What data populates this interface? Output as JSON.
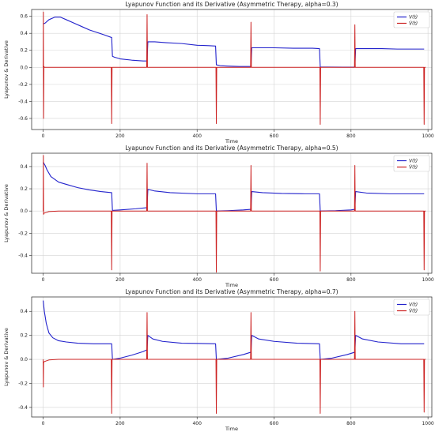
{
  "chart_data": [
    {
      "type": "line",
      "title": "Lyapunov Function and its Derivative (Asymmetric Therapy, alpha=0.3)",
      "xlabel": "Time",
      "ylabel": "Lyapunov & Derivative",
      "xlim": [
        -30,
        1010
      ],
      "ylim": [
        -0.73,
        0.68
      ],
      "xticks": [
        "0",
        "200",
        "400",
        "600",
        "800",
        "1000"
      ],
      "yticks": [
        "-0.6",
        "-0.4",
        "-0.2",
        "0.0",
        "0.2",
        "0.4",
        "0.6"
      ],
      "grid": true,
      "legend_position": "top-right",
      "series": [
        {
          "name": "V(t)",
          "color": "#2222cc",
          "x": [
            0,
            5,
            15,
            30,
            45,
            60,
            80,
            100,
            120,
            140,
            160,
            178,
            180,
            185,
            200,
            230,
            260,
            270,
            272,
            290,
            320,
            360,
            400,
            430,
            448,
            450,
            460,
            480,
            510,
            540,
            542,
            560,
            600,
            650,
            700,
            718,
            720,
            740,
            780,
            810,
            812,
            840,
            880,
            920,
            960,
            990
          ],
          "values": [
            0.51,
            0.52,
            0.56,
            0.59,
            0.59,
            0.56,
            0.52,
            0.48,
            0.44,
            0.41,
            0.38,
            0.35,
            0.13,
            0.12,
            0.1,
            0.085,
            0.075,
            0.075,
            0.3,
            0.3,
            0.29,
            0.28,
            0.26,
            0.255,
            0.25,
            0.03,
            0.02,
            0.015,
            0.01,
            0.01,
            0.23,
            0.23,
            0.23,
            0.225,
            0.225,
            0.22,
            0.005,
            0.003,
            0.002,
            0.002,
            0.22,
            0.22,
            0.22,
            0.215,
            0.215,
            0.215
          ]
        },
        {
          "name": "V̇(t)",
          "color": "#cc2222",
          "x": [
            0,
            0.5,
            1,
            2,
            3,
            60,
            177,
            178,
            179,
            180,
            182,
            200,
            269,
            270,
            271,
            272,
            274,
            300,
            449,
            450,
            451,
            452,
            454,
            500,
            539,
            540,
            541,
            542,
            544,
            600,
            719,
            720,
            721,
            722,
            724,
            800,
            809,
            810,
            811,
            812,
            814,
            900,
            989,
            990,
            991,
            992,
            994
          ],
          "values": [
            0.0,
            0.65,
            -0.6,
            0.01,
            0.0,
            0.0,
            0.0,
            -0.66,
            0.0,
            0.0,
            0.0,
            0.0,
            0.0,
            0.62,
            0.0,
            0.0,
            0.0,
            0.0,
            0.0,
            -0.66,
            0.0,
            0.0,
            0.0,
            0.0,
            0.0,
            0.53,
            0.0,
            0.0,
            0.0,
            0.0,
            0.0,
            -0.67,
            0.0,
            0.0,
            0.0,
            0.0,
            0.0,
            0.5,
            0.0,
            0.0,
            0.0,
            0.0,
            0.0,
            -0.67,
            0.0,
            0.0,
            0.0
          ]
        }
      ]
    },
    {
      "type": "line",
      "title": "Lyapunov Function and its Derivative (Asymmetric Therapy, alpha=0.5)",
      "xlabel": "Time",
      "ylabel": "Lyapunov & Derivative",
      "xlim": [
        -30,
        1010
      ],
      "ylim": [
        -0.56,
        0.52
      ],
      "xticks": [
        "0",
        "200",
        "400",
        "600",
        "800",
        "1000"
      ],
      "yticks": [
        "-0.4",
        "-0.2",
        "0.0",
        "0.2",
        "0.4"
      ],
      "grid": true,
      "legend_position": "top-right",
      "series": [
        {
          "name": "V(t)",
          "color": "#2222cc",
          "x": [
            0,
            5,
            10,
            20,
            40,
            60,
            90,
            120,
            150,
            178,
            180,
            200,
            240,
            270,
            272,
            290,
            330,
            400,
            448,
            450,
            480,
            520,
            540,
            542,
            570,
            620,
            680,
            718,
            720,
            760,
            800,
            810,
            812,
            840,
            900,
            960,
            990
          ],
          "values": [
            0.44,
            0.41,
            0.37,
            0.31,
            0.26,
            0.24,
            0.21,
            0.19,
            0.175,
            0.165,
            0.005,
            0.01,
            0.02,
            0.03,
            0.195,
            0.18,
            0.165,
            0.155,
            0.155,
            0.0,
            0.003,
            0.01,
            0.015,
            0.175,
            0.165,
            0.158,
            0.155,
            0.155,
            0.0,
            0.003,
            0.01,
            0.015,
            0.175,
            0.162,
            0.155,
            0.155,
            0.155
          ]
        },
        {
          "name": "V̇(t)",
          "color": "#cc2222",
          "x": [
            0,
            0.5,
            1,
            2,
            6,
            15,
            40,
            177,
            178,
            179,
            180,
            182,
            200,
            269,
            270,
            271,
            272,
            274,
            300,
            449,
            450,
            451,
            452,
            454,
            500,
            539,
            540,
            541,
            542,
            544,
            600,
            719,
            720,
            721,
            722,
            724,
            800,
            809,
            810,
            811,
            812,
            814,
            900,
            989,
            990,
            991,
            992,
            994
          ],
          "values": [
            0.0,
            0.5,
            -0.03,
            -0.02,
            -0.015,
            -0.005,
            0.0,
            0.0,
            -0.53,
            0.0,
            0.0,
            0.0,
            0.0,
            0.0,
            0.43,
            0.0,
            0.0,
            0.0,
            0.0,
            0.0,
            -0.55,
            0.0,
            0.0,
            0.0,
            0.0,
            0.0,
            0.41,
            0.0,
            0.0,
            0.0,
            0.0,
            0.0,
            -0.54,
            0.0,
            0.0,
            0.0,
            0.0,
            0.0,
            0.41,
            0.0,
            0.0,
            0.0,
            0.0,
            0.0,
            -0.53,
            0.0,
            0.0,
            0.0
          ]
        }
      ]
    },
    {
      "type": "line",
      "title": "Lyapunov Function and its Derivative (Asymmetric Therapy, alpha=0.7)",
      "xlabel": "Time",
      "ylabel": "Lyapunov & Derivative",
      "xlim": [
        -30,
        1010
      ],
      "ylim": [
        -0.48,
        0.52
      ],
      "xticks": [
        "0",
        "200",
        "400",
        "600",
        "800",
        "1000"
      ],
      "yticks": [
        "-0.4",
        "-0.2",
        "0.0",
        "0.2",
        "0.4"
      ],
      "grid": true,
      "legend_position": "top-right",
      "series": [
        {
          "name": "V(t)",
          "color": "#2222cc",
          "x": [
            0,
            3,
            8,
            15,
            25,
            40,
            60,
            90,
            130,
            178,
            180,
            200,
            230,
            260,
            270,
            272,
            285,
            310,
            360,
            448,
            450,
            480,
            520,
            540,
            542,
            560,
            600,
            660,
            718,
            720,
            750,
            790,
            810,
            812,
            830,
            870,
            930,
            990
          ],
          "values": [
            0.49,
            0.4,
            0.3,
            0.22,
            0.18,
            0.155,
            0.145,
            0.135,
            0.13,
            0.13,
            0.0,
            0.01,
            0.035,
            0.065,
            0.08,
            0.2,
            0.17,
            0.15,
            0.135,
            0.13,
            0.0,
            0.01,
            0.04,
            0.06,
            0.2,
            0.17,
            0.15,
            0.135,
            0.13,
            0.0,
            0.01,
            0.04,
            0.06,
            0.2,
            0.17,
            0.145,
            0.13,
            0.13
          ]
        },
        {
          "name": "V̇(t)",
          "color": "#cc2222",
          "x": [
            0,
            0.5,
            1,
            2,
            6,
            15,
            40,
            177,
            178,
            179,
            180,
            182,
            200,
            269,
            270,
            271,
            272,
            274,
            300,
            449,
            450,
            451,
            452,
            454,
            500,
            539,
            540,
            541,
            542,
            544,
            600,
            719,
            720,
            721,
            722,
            724,
            800,
            809,
            810,
            811,
            812,
            814,
            900,
            989,
            990,
            991,
            992,
            994
          ],
          "values": [
            0.0,
            -0.23,
            -0.03,
            -0.02,
            -0.015,
            -0.005,
            0.0,
            0.0,
            -0.45,
            0.0,
            0.0,
            0.0,
            0.0,
            0.0,
            0.39,
            0.0,
            0.0,
            0.0,
            0.0,
            0.0,
            -0.45,
            0.0,
            0.0,
            0.0,
            0.0,
            0.0,
            0.39,
            0.0,
            0.0,
            0.0,
            0.0,
            0.0,
            -0.45,
            0.0,
            0.0,
            0.0,
            0.0,
            0.0,
            0.4,
            0.0,
            0.0,
            0.0,
            0.0,
            0.0,
            -0.44,
            0.0,
            0.0,
            0.0
          ]
        }
      ]
    }
  ]
}
